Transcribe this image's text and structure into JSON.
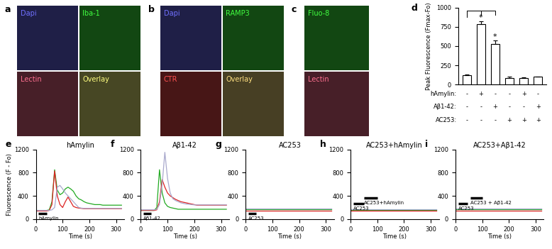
{
  "images": [
    {
      "panel": "a",
      "tiles": [
        {
          "text": "Dapi",
          "color": "#7070ff"
        },
        {
          "text": "Iba-1",
          "color": "#40ff40"
        },
        {
          "text": "Lectin",
          "color": "#ff7090"
        },
        {
          "text": "Overlay",
          "color": "#ffff80"
        }
      ]
    },
    {
      "panel": "b",
      "tiles": [
        {
          "text": "Dapi",
          "color": "#7070ff"
        },
        {
          "text": "RAMP3",
          "color": "#40ff40"
        },
        {
          "text": "CTR",
          "color": "#ff5050"
        },
        {
          "text": "Overlay",
          "color": "#ffe080"
        }
      ]
    },
    {
      "panel": "c",
      "tiles": [
        {
          "text": "Fluo-8",
          "color": "#40ff40"
        },
        {
          "text": "Lectin",
          "color": "#ff7090"
        }
      ]
    }
  ],
  "chart_data": [
    {
      "panel": "d",
      "type": "bar",
      "y_label": "Peak Fluorescence (Fmax-Fo)",
      "categories": [
        null,
        null,
        null,
        null,
        null,
        null
      ],
      "values": [
        120,
        780,
        530,
        90,
        90,
        100
      ],
      "errors": [
        15,
        40,
        40,
        10,
        5,
        5
      ],
      "color": "#ffffff",
      "ylim": [
        0,
        1000
      ],
      "yticks": [
        0,
        250,
        500,
        750,
        1000
      ],
      "tick_labels": "y",
      "annotations": [
        {
          "text": "*",
          "index": 1,
          "compare_to": 0
        },
        {
          "text": "*",
          "index": 2,
          "compare_to": 0
        }
      ],
      "conditions": [
        {
          "label": "hAmylin:",
          "marks": [
            "-",
            "+",
            "-",
            "-",
            "+",
            "-"
          ]
        },
        {
          "label": "Aβ1-42:",
          "marks": [
            "-",
            "-",
            "+",
            "-",
            "-",
            "+"
          ]
        },
        {
          "label": "AC253:",
          "marks": [
            "-",
            "-",
            "-",
            "+",
            "+",
            "+"
          ]
        }
      ]
    },
    {
      "panel": "e",
      "type": "line",
      "title": "hAmylin",
      "x_label": "Time (s)",
      "y_label": "Fluorescence (F - Fo)",
      "x": [
        0,
        10,
        20,
        30,
        40,
        50,
        60,
        70,
        80,
        90,
        100,
        110,
        120,
        130,
        140,
        150,
        160,
        170,
        180,
        190,
        200,
        210,
        220,
        230,
        240,
        250,
        260,
        270,
        280,
        290,
        300,
        310,
        320
      ],
      "series": [
        {
          "color": "#22aa22",
          "values": [
            150,
            150,
            150,
            150,
            150,
            160,
            300,
            850,
            500,
            420,
            450,
            520,
            550,
            520,
            480,
            400,
            350,
            330,
            300,
            280,
            270,
            260,
            250,
            250,
            250,
            240,
            240,
            240,
            240,
            240,
            240,
            240,
            240
          ]
        },
        {
          "color": "#dd2222",
          "values": [
            140,
            140,
            140,
            140,
            140,
            150,
            250,
            830,
            400,
            250,
            200,
            300,
            380,
            300,
            220,
            200,
            190,
            185,
            180,
            180,
            180,
            180,
            180,
            180,
            180,
            180,
            180,
            180,
            180,
            180,
            180,
            180,
            180
          ]
        },
        {
          "color": "#a8a8cc",
          "values": [
            150,
            150,
            150,
            150,
            150,
            150,
            160,
            200,
            550,
            580,
            520,
            450,
            400,
            350,
            300,
            250,
            200,
            190,
            185,
            185,
            185,
            185,
            185,
            185,
            185,
            185,
            185,
            185,
            185,
            185,
            185,
            185,
            185
          ]
        }
      ],
      "xlim": [
        0,
        330
      ],
      "ylim": [
        0,
        1200
      ],
      "xticks": [
        0,
        100,
        200,
        300
      ],
      "yticks": [
        0,
        400,
        800,
        1200
      ],
      "events": [
        {
          "text": "hAmylin",
          "start": 10,
          "end": 40,
          "level": 100
        }
      ]
    },
    {
      "panel": "f",
      "type": "line",
      "title": "Aβ1-42",
      "x_label": "Time (s)",
      "x": [
        0,
        10,
        20,
        30,
        40,
        50,
        60,
        70,
        80,
        90,
        100,
        110,
        120,
        130,
        140,
        150,
        160,
        170,
        180,
        190,
        200,
        210,
        220,
        230,
        240,
        250,
        260,
        270,
        280,
        290,
        300,
        310,
        320
      ],
      "series": [
        {
          "color": "#22aa22",
          "values": [
            150,
            150,
            150,
            150,
            150,
            150,
            200,
            850,
            450,
            280,
            220,
            200,
            190,
            180,
            170,
            170,
            170,
            170,
            170,
            170,
            170,
            170,
            170,
            170,
            170,
            170,
            170,
            170,
            170,
            170,
            170,
            170,
            170
          ]
        },
        {
          "color": "#dd2222",
          "values": [
            150,
            150,
            150,
            150,
            150,
            150,
            160,
            300,
            680,
            550,
            450,
            400,
            370,
            340,
            320,
            300,
            290,
            280,
            270,
            260,
            250,
            240,
            240,
            240,
            240,
            240,
            240,
            240,
            240,
            240,
            240,
            240,
            240
          ]
        },
        {
          "color": "#a8a8cc",
          "values": [
            160,
            160,
            160,
            160,
            160,
            160,
            170,
            250,
            600,
            1150,
            700,
            450,
            350,
            320,
            300,
            280,
            270,
            260,
            255,
            250,
            245,
            245,
            245,
            245,
            245,
            245,
            245,
            245,
            245,
            245,
            245,
            245,
            245
          ]
        }
      ],
      "xlim": [
        0,
        330
      ],
      "ylim": [
        0,
        1200
      ],
      "xticks": [
        0,
        100,
        200,
        300
      ],
      "yticks": [
        0,
        400,
        800,
        1200
      ],
      "events": [
        {
          "text": "Aβ1-42",
          "start": 10,
          "end": 40,
          "level": 100
        }
      ]
    },
    {
      "panel": "g",
      "type": "line",
      "title": "AC253",
      "x_label": "Time (s)",
      "x": [
        0,
        10,
        20,
        30,
        40,
        50,
        60,
        70,
        80,
        90,
        100,
        110,
        120,
        130,
        140,
        150,
        160,
        170,
        180,
        190,
        200,
        210,
        220,
        230,
        240,
        250,
        260,
        270,
        280,
        290,
        300,
        310,
        320
      ],
      "series": [
        {
          "color": "#22aa22",
          "values": [
            170,
            170,
            170,
            170,
            170,
            170,
            170,
            170,
            170,
            170,
            170,
            170,
            170,
            170,
            170,
            170,
            170,
            170,
            170,
            170,
            170,
            170,
            170,
            170,
            170,
            170,
            170,
            170,
            170,
            170,
            170,
            170,
            170
          ]
        },
        {
          "color": "#dd2222",
          "values": [
            150,
            150,
            150,
            150,
            150,
            150,
            150,
            150,
            150,
            150,
            150,
            150,
            150,
            150,
            150,
            150,
            150,
            150,
            150,
            150,
            150,
            150,
            150,
            150,
            150,
            150,
            150,
            150,
            150,
            150,
            150,
            150,
            150
          ]
        },
        {
          "color": "#a8a8cc",
          "values": [
            185,
            185,
            185,
            185,
            185,
            185,
            185,
            185,
            185,
            185,
            185,
            185,
            185,
            185,
            185,
            185,
            185,
            185,
            185,
            185,
            185,
            185,
            185,
            185,
            185,
            185,
            185,
            185,
            185,
            185,
            185,
            185,
            185
          ]
        }
      ],
      "xlim": [
        0,
        330
      ],
      "ylim": [
        0,
        1200
      ],
      "xticks": [
        0,
        100,
        200,
        300
      ],
      "yticks": [
        0,
        400,
        800,
        1200
      ],
      "events": [
        {
          "text": "AC253",
          "start": 10,
          "end": 40,
          "level": 100
        }
      ]
    },
    {
      "panel": "h",
      "type": "line",
      "title": "AC253+hAmylin",
      "x_label": "Time (s)",
      "x": [
        0,
        10,
        20,
        30,
        40,
        50,
        60,
        70,
        80,
        90,
        100,
        110,
        120,
        130,
        140,
        150,
        160,
        170,
        180,
        190,
        200,
        210,
        220,
        230,
        240,
        250,
        260,
        270,
        280,
        290,
        300,
        310,
        320
      ],
      "series": [
        {
          "color": "#22aa22",
          "values": [
            160,
            160,
            160,
            160,
            160,
            160,
            160,
            160,
            160,
            160,
            160,
            160,
            160,
            160,
            160,
            160,
            160,
            160,
            160,
            160,
            160,
            160,
            160,
            160,
            160,
            160,
            160,
            160,
            160,
            160,
            160,
            160,
            160
          ]
        },
        {
          "color": "#dd2222",
          "values": [
            140,
            140,
            140,
            140,
            140,
            140,
            140,
            140,
            140,
            140,
            140,
            140,
            140,
            140,
            140,
            140,
            140,
            140,
            140,
            140,
            140,
            140,
            140,
            140,
            140,
            140,
            140,
            140,
            140,
            140,
            140,
            140,
            140
          ]
        },
        {
          "color": "#a8a8cc",
          "values": [
            175,
            175,
            175,
            175,
            175,
            175,
            175,
            175,
            175,
            175,
            175,
            175,
            175,
            175,
            175,
            175,
            175,
            175,
            175,
            175,
            175,
            175,
            175,
            175,
            175,
            175,
            175,
            175,
            175,
            175,
            175,
            175,
            175
          ]
        }
      ],
      "xlim": [
        0,
        330
      ],
      "ylim": [
        0,
        1200
      ],
      "xticks": [
        0,
        100,
        200,
        300
      ],
      "yticks": [
        0,
        400,
        800,
        1200
      ],
      "events": [
        {
          "text": "AC253",
          "start": 10,
          "end": 50,
          "level": 270
        },
        {
          "text": "AC253+hAmylin",
          "start": 50,
          "end": 100,
          "level": 370
        }
      ]
    },
    {
      "panel": "i",
      "type": "line",
      "title": "AC253+Aβ1-42",
      "x_label": "Time (s)",
      "x": [
        0,
        10,
        20,
        30,
        40,
        50,
        60,
        70,
        80,
        90,
        100,
        110,
        120,
        130,
        140,
        150,
        160,
        170,
        180,
        190,
        200,
        210,
        220,
        230,
        240,
        250,
        260,
        270,
        280,
        290,
        300,
        310,
        320
      ],
      "series": [
        {
          "color": "#22aa22",
          "values": [
            165,
            165,
            165,
            165,
            165,
            165,
            165,
            165,
            165,
            165,
            165,
            165,
            165,
            165,
            165,
            165,
            165,
            165,
            165,
            165,
            165,
            165,
            165,
            165,
            165,
            165,
            165,
            165,
            165,
            165,
            165,
            165,
            165
          ]
        },
        {
          "color": "#dd2222",
          "values": [
            150,
            150,
            150,
            150,
            150,
            150,
            150,
            150,
            150,
            150,
            150,
            150,
            150,
            150,
            150,
            150,
            150,
            150,
            150,
            150,
            150,
            150,
            150,
            150,
            150,
            150,
            150,
            150,
            150,
            150,
            150,
            150,
            150
          ]
        },
        {
          "color": "#a8a8cc",
          "values": [
            180,
            180,
            180,
            180,
            180,
            180,
            180,
            180,
            180,
            180,
            180,
            180,
            180,
            180,
            180,
            180,
            180,
            180,
            180,
            180,
            180,
            180,
            180,
            180,
            180,
            180,
            180,
            180,
            180,
            180,
            180,
            180,
            180
          ]
        }
      ],
      "xlim": [
        0,
        330
      ],
      "ylim": [
        0,
        1200
      ],
      "xticks": [
        0,
        100,
        200,
        300
      ],
      "yticks": [
        0,
        400,
        800,
        1200
      ],
      "events": [
        {
          "text": "AC253",
          "start": 10,
          "end": 45,
          "level": 270
        },
        {
          "text": "AC253 + Aβ1-42",
          "start": 55,
          "end": 100,
          "level": 370
        }
      ]
    }
  ]
}
